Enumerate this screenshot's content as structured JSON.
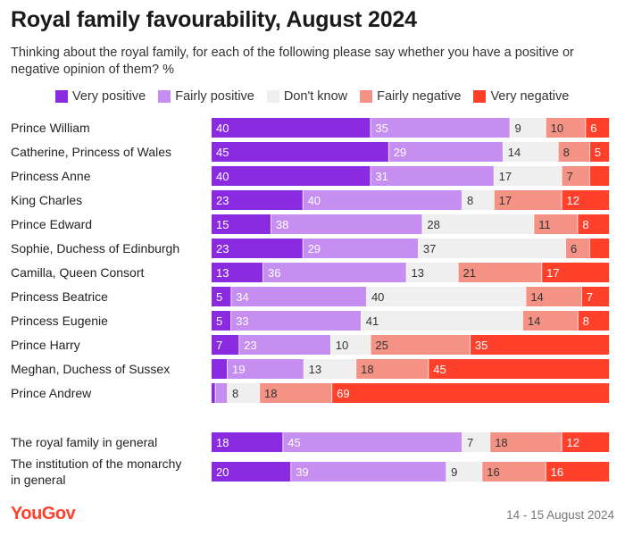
{
  "title": "Royal family favourability, August 2024",
  "subtitle": "Thinking about the royal family, for each of the following please say whether you have a positive or negative opinion of them? %",
  "source": "YouGov",
  "date": "14 - 15 August 2024",
  "chart_data": {
    "type": "bar",
    "orientation": "horizontal",
    "stacked": true,
    "legend_position": "top",
    "series": [
      {
        "name": "Very positive",
        "color": "#8a2be2"
      },
      {
        "name": "Fairly positive",
        "color": "#c58ef0"
      },
      {
        "name": "Don't know",
        "color": "#efefef"
      },
      {
        "name": "Fairly negative",
        "color": "#f49285"
      },
      {
        "name": "Very negative",
        "color": "#ff412c"
      }
    ],
    "categories": [
      "Prince William",
      "Catherine, Princess of Wales",
      "Princess Anne",
      "King Charles",
      "Prince Edward",
      "Sophie, Duchess of Edinburgh",
      "Camilla, Queen Consort",
      "Princess Beatrice",
      "Princess Eugenie",
      "Prince Harry",
      "Meghan, Duchess of Sussex",
      "Prince Andrew",
      "The royal family in general",
      "The institution of the monarchy in general"
    ],
    "values": [
      [
        40,
        35,
        9,
        10,
        6
      ],
      [
        45,
        29,
        14,
        8,
        5
      ],
      [
        40,
        31,
        17,
        7,
        5
      ],
      [
        23,
        40,
        8,
        17,
        12
      ],
      [
        15,
        38,
        28,
        11,
        8
      ],
      [
        23,
        29,
        37,
        6,
        5
      ],
      [
        13,
        36,
        13,
        21,
        17
      ],
      [
        5,
        34,
        40,
        14,
        7
      ],
      [
        5,
        33,
        41,
        14,
        8
      ],
      [
        7,
        23,
        10,
        25,
        35
      ],
      [
        4,
        19,
        13,
        18,
        45
      ],
      [
        1,
        3,
        8,
        18,
        69
      ],
      [
        18,
        45,
        7,
        18,
        12
      ],
      [
        20,
        39,
        9,
        16,
        16
      ]
    ],
    "display_labels": [
      [
        "40",
        "35",
        "9",
        "10",
        "6"
      ],
      [
        "45",
        "29",
        "14",
        "8",
        "5"
      ],
      [
        "40",
        "31",
        "17",
        "7",
        ""
      ],
      [
        "23",
        "40",
        "8",
        "17",
        "12"
      ],
      [
        "15",
        "38",
        "28",
        "11",
        "8"
      ],
      [
        "23",
        "29",
        "37",
        "6",
        ""
      ],
      [
        "13",
        "36",
        "13",
        "21",
        "17"
      ],
      [
        "5",
        "34",
        "40",
        "14",
        "7"
      ],
      [
        "5",
        "33",
        "41",
        "14",
        "8"
      ],
      [
        "7",
        "23",
        "10",
        "25",
        "35"
      ],
      [
        "",
        "19",
        "13",
        "18",
        "45"
      ],
      [
        "",
        "",
        "8",
        "18",
        "69"
      ],
      [
        "18",
        "45",
        "7",
        "18",
        "12"
      ],
      [
        "20",
        "39",
        "9",
        "16",
        "16"
      ]
    ]
  }
}
